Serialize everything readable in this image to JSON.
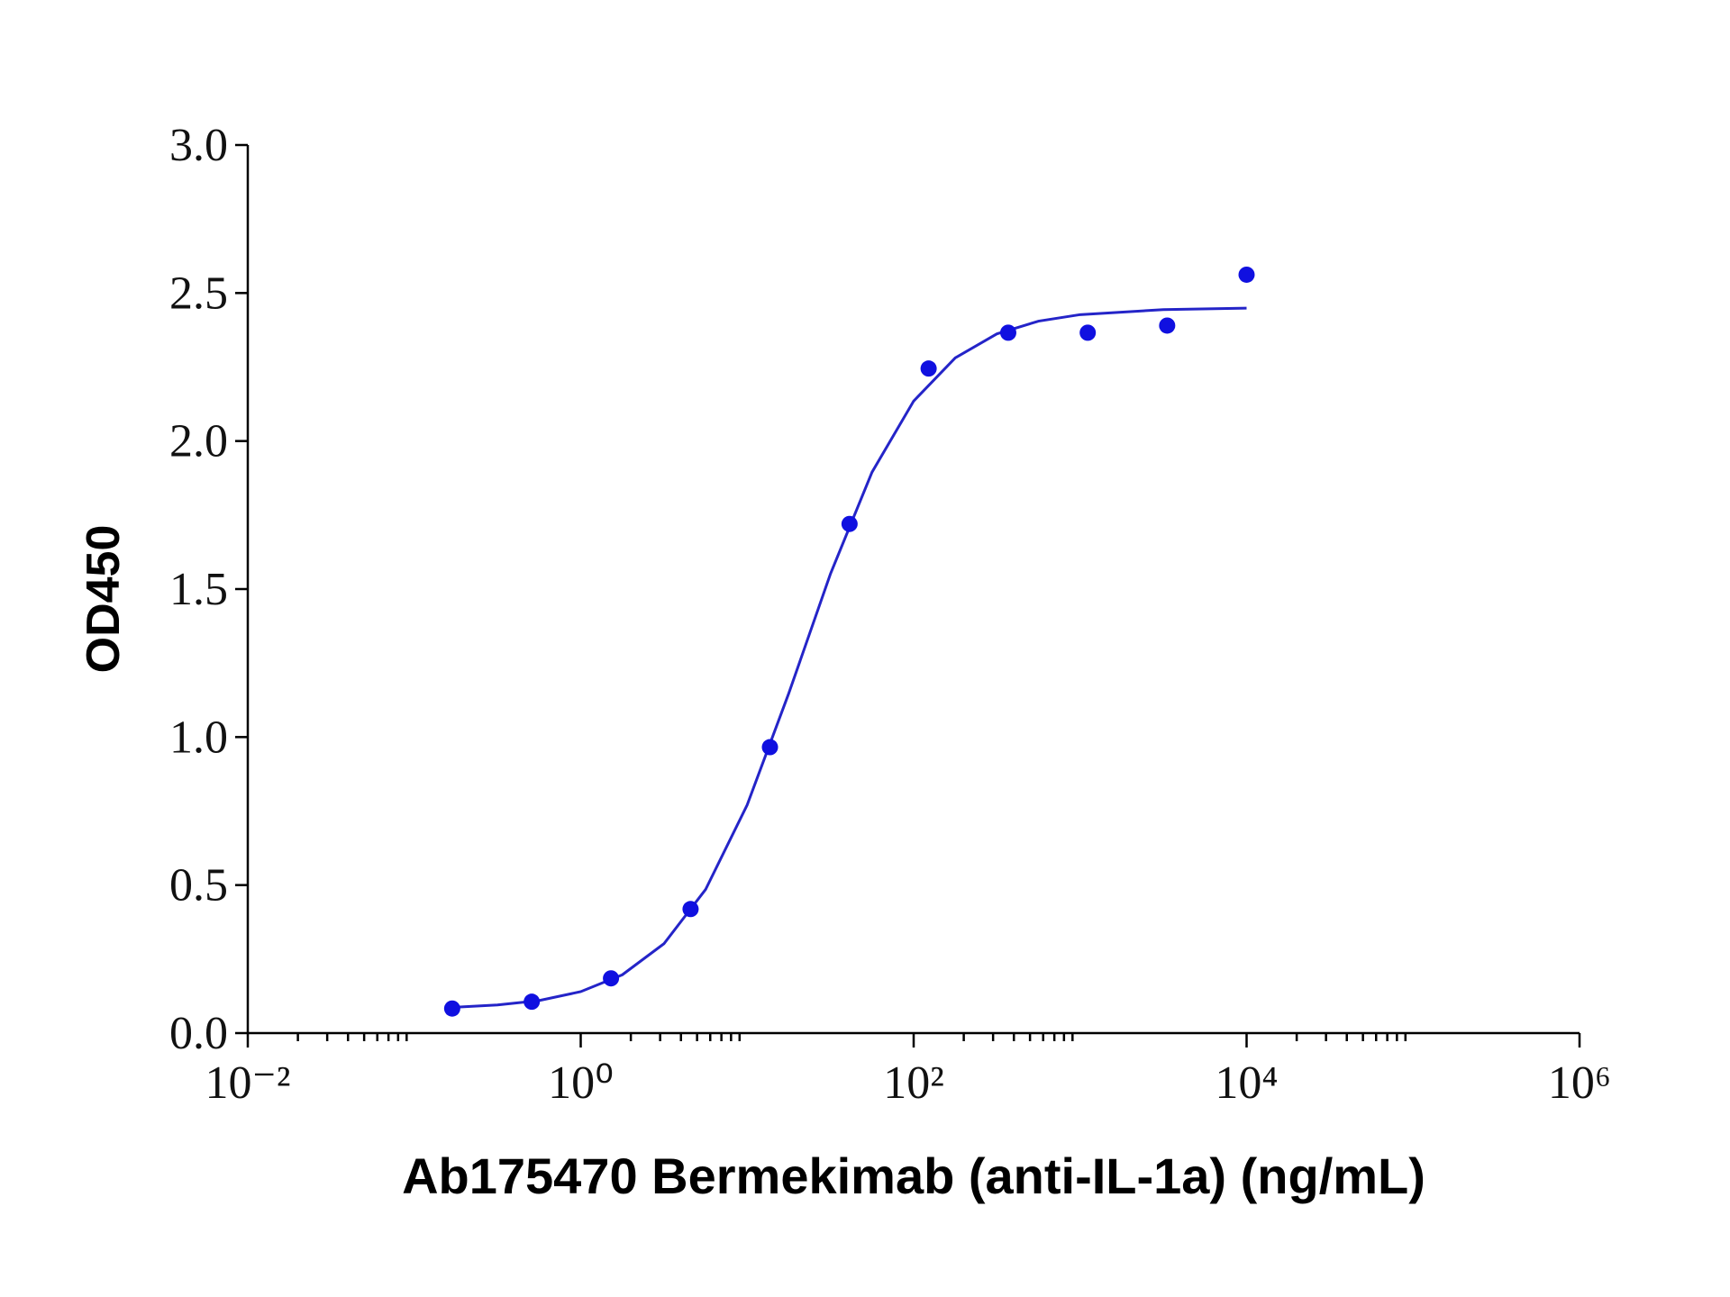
{
  "chart_data": {
    "type": "scatter",
    "x_label": "Ab175470 Bermekimab (anti-IL-1a) (ng/mL)",
    "y_label": "OD450",
    "log_x": true,
    "minor_ticks": true,
    "series": [
      {
        "color": "#1010e0",
        "x": [
          0.169,
          0.508,
          1.52,
          4.57,
          13.7,
          41.2,
          123,
          370,
          1111,
          3333,
          10000
        ],
        "values": [
          0.083,
          0.106,
          0.185,
          0.419,
          0.966,
          1.72,
          2.245,
          2.366,
          2.366,
          2.39,
          2.562
        ]
      }
    ],
    "curve": {
      "color": "#2424c8",
      "x": [
        0.17,
        0.316,
        0.562,
        1,
        1.778,
        3.162,
        5.623,
        10,
        17.78,
        31.62,
        56.23,
        100,
        177.8,
        316.2,
        562.3,
        1000,
        3162,
        10000
      ],
      "values": [
        0.087,
        0.095,
        0.11,
        0.14,
        0.197,
        0.302,
        0.485,
        0.771,
        1.148,
        1.551,
        1.895,
        2.135,
        2.281,
        2.362,
        2.405,
        2.427,
        2.444,
        2.449
      ]
    },
    "xlim": [
      0.01,
      1000000
    ],
    "xticks": [
      {
        "value": 0.01,
        "label": "10⁻²"
      },
      {
        "value": 1,
        "label": "10⁰"
      },
      {
        "value": 100,
        "label": "10²"
      },
      {
        "value": 10000,
        "label": "10⁴"
      },
      {
        "value": 1000000,
        "label": "10⁶"
      }
    ],
    "ylim": [
      0,
      3
    ],
    "yticks": [
      {
        "value": 0,
        "label": "0.0"
      },
      0.5,
      {
        "value": 1,
        "label": "1.0"
      },
      1.5,
      {
        "value": 2,
        "label": "2.0"
      },
      2.5,
      {
        "value": 3,
        "label": "3.0"
      }
    ]
  }
}
